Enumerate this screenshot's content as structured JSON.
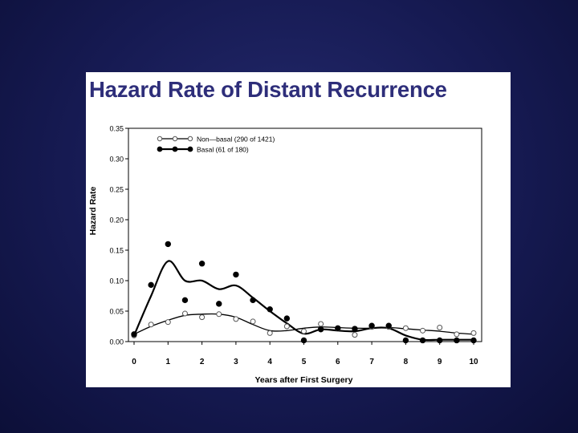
{
  "slide": {
    "title": "Hazard Rate of Distant Recurrence",
    "background_color": "#161a52",
    "title_color": "#2e2e7a"
  },
  "chart_data": {
    "type": "line",
    "title": "Hazard Rate of Distant Recurrence",
    "xlabel": "Years after First Surgery",
    "ylabel": "Hazard Rate",
    "xlim": [
      0,
      10
    ],
    "ylim": [
      0,
      0.35
    ],
    "x_ticks": [
      "0",
      "1",
      "2",
      "3",
      "4",
      "5",
      "6",
      "7",
      "8",
      "9",
      "10"
    ],
    "y_ticks": [
      "0.00",
      "0.05",
      "0.10",
      "0.15",
      "0.20",
      "0.25",
      "0.30",
      "0.35"
    ],
    "legend_position": "top-left",
    "grid": false,
    "series": [
      {
        "name": "Non—basal (290 of 1421)",
        "marker": "open-circle",
        "points": [
          [
            0,
            0.01
          ],
          [
            0.5,
            0.028
          ],
          [
            1,
            0.032
          ],
          [
            1.5,
            0.046
          ],
          [
            2,
            0.04
          ],
          [
            2.5,
            0.045
          ],
          [
            3,
            0.037
          ],
          [
            3.5,
            0.033
          ],
          [
            4,
            0.014
          ],
          [
            4.5,
            0.025
          ],
          [
            5,
            0.017
          ],
          [
            5.5,
            0.029
          ],
          [
            6,
            0.021
          ],
          [
            6.5,
            0.011
          ],
          [
            7,
            0.024
          ],
          [
            7.5,
            0.024
          ],
          [
            8,
            0.022
          ],
          [
            8.5,
            0.018
          ],
          [
            9,
            0.023
          ],
          [
            9.5,
            0.012
          ],
          [
            10,
            0.014
          ]
        ],
        "smooth": [
          [
            0,
            0.012
          ],
          [
            0.5,
            0.025
          ],
          [
            1,
            0.035
          ],
          [
            1.5,
            0.043
          ],
          [
            2,
            0.045
          ],
          [
            2.5,
            0.045
          ],
          [
            3,
            0.04
          ],
          [
            3.5,
            0.028
          ],
          [
            4,
            0.018
          ],
          [
            4.5,
            0.018
          ],
          [
            5,
            0.022
          ],
          [
            5.5,
            0.024
          ],
          [
            6,
            0.023
          ],
          [
            6.5,
            0.022
          ],
          [
            7,
            0.022
          ],
          [
            7.5,
            0.023
          ],
          [
            8,
            0.021
          ],
          [
            8.5,
            0.019
          ],
          [
            9,
            0.017
          ],
          [
            9.5,
            0.014
          ],
          [
            10,
            0.012
          ]
        ]
      },
      {
        "name": "Basal (61 of 180)",
        "marker": "filled-circle",
        "points": [
          [
            0,
            0.012
          ],
          [
            0.5,
            0.093
          ],
          [
            1,
            0.16
          ],
          [
            1.5,
            0.068
          ],
          [
            2,
            0.128
          ],
          [
            2.5,
            0.062
          ],
          [
            3,
            0.11
          ],
          [
            3.5,
            0.068
          ],
          [
            4,
            0.053
          ],
          [
            4.5,
            0.038
          ],
          [
            5,
            0.002
          ],
          [
            5.5,
            0.02
          ],
          [
            6,
            0.022
          ],
          [
            6.5,
            0.021
          ],
          [
            7,
            0.026
          ],
          [
            7.5,
            0.026
          ],
          [
            8,
            0.002
          ],
          [
            8.5,
            0.002
          ],
          [
            9,
            0.002
          ],
          [
            9.5,
            0.002
          ],
          [
            10,
            0.002
          ]
        ],
        "smooth": [
          [
            0,
            0.01
          ],
          [
            0.5,
            0.075
          ],
          [
            1,
            0.132
          ],
          [
            1.5,
            0.1
          ],
          [
            2,
            0.1
          ],
          [
            2.5,
            0.086
          ],
          [
            3,
            0.092
          ],
          [
            3.5,
            0.072
          ],
          [
            4,
            0.05
          ],
          [
            4.5,
            0.03
          ],
          [
            5,
            0.013
          ],
          [
            5.5,
            0.02
          ],
          [
            6,
            0.018
          ],
          [
            6.5,
            0.017
          ],
          [
            7,
            0.022
          ],
          [
            7.5,
            0.022
          ],
          [
            8,
            0.01
          ],
          [
            8.5,
            0.003
          ],
          [
            9,
            0.003
          ],
          [
            9.5,
            0.003
          ],
          [
            10,
            0.003
          ]
        ]
      }
    ]
  }
}
